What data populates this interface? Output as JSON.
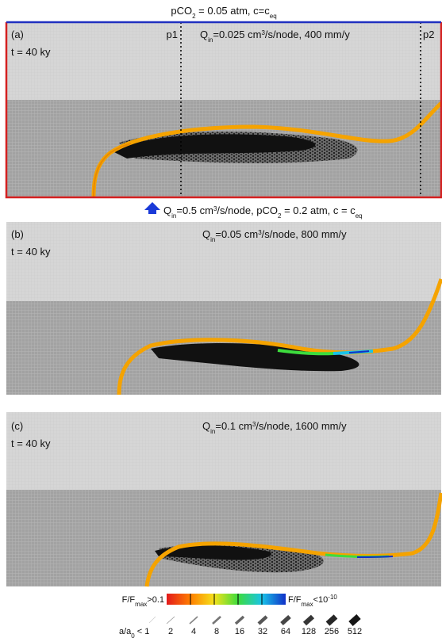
{
  "top_condition": [
    "pCO",
    "2",
    " = 0.05 atm, c=c",
    "eq"
  ],
  "inlet_condition": [
    "Q",
    "in",
    "=0.5 cm",
    "3",
    "/s/node, pCO",
    "2",
    " = 0.2 atm, c = c",
    "eq"
  ],
  "profiles": [
    "p1",
    "p2"
  ],
  "panels": [
    {
      "label": "(a)",
      "time": "t = 40 ky",
      "flux": [
        "Q",
        "in",
        "=0.025 cm",
        "3",
        "/s/node, 400 mm/y"
      ]
    },
    {
      "label": "(b)",
      "time": "t = 40 ky",
      "flux": [
        "Q",
        "in",
        "=0.05 cm",
        "3",
        "/s/node, 800 mm/y"
      ]
    },
    {
      "label": "(c)",
      "time": "t = 40 ky",
      "flux": [
        "Q",
        "in",
        "=0.1 cm",
        "3",
        "/s/node, 1600 mm/y"
      ]
    }
  ],
  "colorbar": {
    "left": [
      "F/F",
      "max",
      ">0.1"
    ],
    "right": [
      "F/F",
      "max",
      "<10",
      "-10"
    ]
  },
  "aperture_legend": {
    "title": [
      "a/a",
      "0",
      " < 1"
    ],
    "values": [
      2,
      4,
      8,
      16,
      32,
      64,
      128,
      256,
      512
    ]
  }
}
